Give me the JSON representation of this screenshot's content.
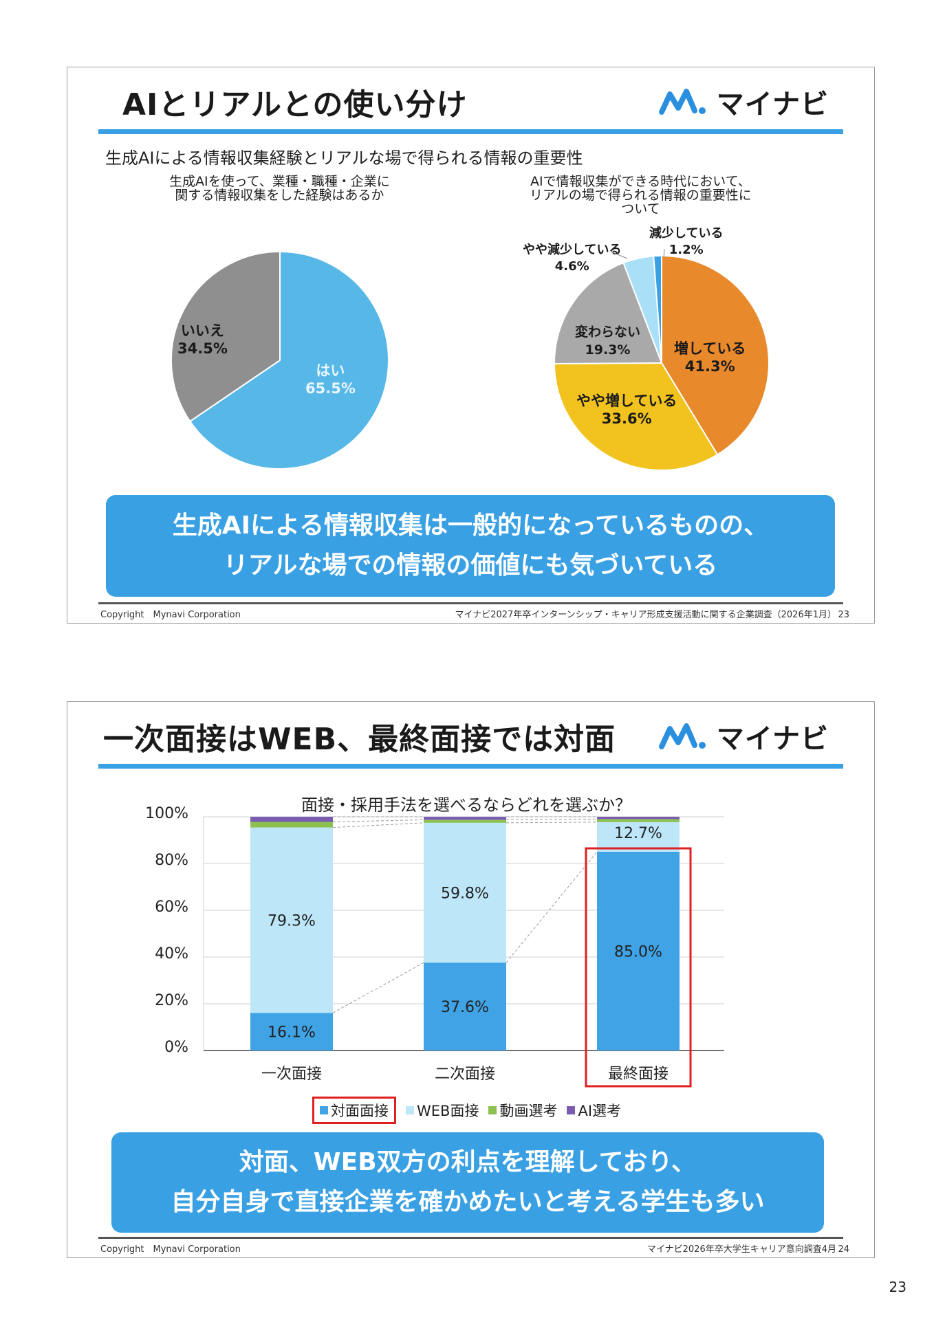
{
  "slide1": {
    "title": "AIとリアルとの使い分け",
    "logo_text": "マイナビ",
    "subheading": "生成AIによる情報収集経験とリアルな場で得られる情報の重要性",
    "left_question": [
      "生成AIを使って、業種・職種・企業に",
      "関する情報収集をした経験はあるか"
    ],
    "right_question": [
      "AIで情報収集ができる時代において、",
      "リアルの場で得られる情報の重要性に",
      "ついて"
    ],
    "callout": [
      "生成AIによる情報収集は一般的になっているものの、",
      "リアルな場での情報の価値にも気づいている"
    ],
    "copyright": "Copyright　Mynavi Corporation",
    "source": "マイナビ2027年卒インターンシップ・キャリア形成支援活動に関する企業調査（2026年1月）",
    "page": "23",
    "pie_labels": {
      "yes": [
        "はい",
        "65.5%"
      ],
      "no": [
        "いいえ",
        "34.5%"
      ],
      "increase": [
        "増している",
        "41.3%"
      ],
      "slight_increase": [
        "やや増している",
        "33.6%"
      ],
      "unchanged": [
        "変わらない",
        "19.3%"
      ],
      "slight_decrease": [
        "やや減少している",
        "4.6%"
      ],
      "decrease": [
        "減少している",
        "1.2%"
      ]
    }
  },
  "slide2": {
    "title": "一次面接はWEB、最終面接では対面",
    "logo_text": "マイナビ",
    "chart_title": "面接・採用手法を選べるならどれを選ぶか？",
    "y_ticks": [
      "100%",
      "80%",
      "60%",
      "40%",
      "20%",
      "0%"
    ],
    "legend": [
      "対面面接",
      "WEB面接",
      "動画選考",
      "AI選考"
    ],
    "callout": [
      "対面、WEB双方の利点を理解しており、",
      "自分自身で直接企業を確かめたいと考える学生も多い"
    ],
    "copyright": "Copyright　Mynavi Corporation",
    "source": "マイナビ2026年卒大学生キャリア意向調査4月",
    "page": "24"
  },
  "page_number": "23",
  "chart_data": [
    {
      "type": "pie",
      "title": "生成AIを使って、業種・職種・企業に関する情報収集をした経験はあるか",
      "categories": [
        "はい",
        "いいえ"
      ],
      "values": [
        65.5,
        34.5
      ],
      "colors": [
        "#57b8e8",
        "#8f8f8f"
      ]
    },
    {
      "type": "pie",
      "title": "AIで情報収集ができる時代において、リアルの場で得られる情報の重要性について",
      "categories": [
        "増している",
        "やや増している",
        "変わらない",
        "やや減少している",
        "減少している"
      ],
      "values": [
        41.3,
        33.6,
        19.3,
        4.6,
        1.2
      ],
      "colors": [
        "#e8892c",
        "#f2c21f",
        "#a9a9a9",
        "#a9e0f7",
        "#3aa0e4"
      ]
    },
    {
      "type": "bar",
      "stacked": true,
      "title": "面接・採用手法を選べるならどれを選ぶか？",
      "categories": [
        "一次面接",
        "二次面接",
        "最終面接"
      ],
      "series": [
        {
          "name": "対面面接",
          "values": [
            16.1,
            37.6,
            85.0
          ],
          "color": "#3fa3e5",
          "labels": [
            "16.1%",
            "37.6%",
            "85.0%"
          ]
        },
        {
          "name": "WEB面接",
          "values": [
            79.3,
            59.8,
            12.7
          ],
          "color": "#bde7f9",
          "labels": [
            "79.3%",
            "59.8%",
            "12.7%"
          ]
        },
        {
          "name": "動画選考",
          "values": [
            2.4,
            1.3,
            1.3
          ],
          "color": "#8cc152",
          "labels": []
        },
        {
          "name": "AI選考",
          "values": [
            2.2,
            1.3,
            1.0
          ],
          "color": "#7a5cb0",
          "labels": []
        }
      ],
      "ylim": [
        0,
        100
      ],
      "y_ticks": [
        "0%",
        "20%",
        "40%",
        "60%",
        "80%",
        "100%"
      ],
      "grid": true,
      "legend_position": "bottom",
      "highlighted": [
        "最終面接",
        "対面面接"
      ]
    }
  ]
}
